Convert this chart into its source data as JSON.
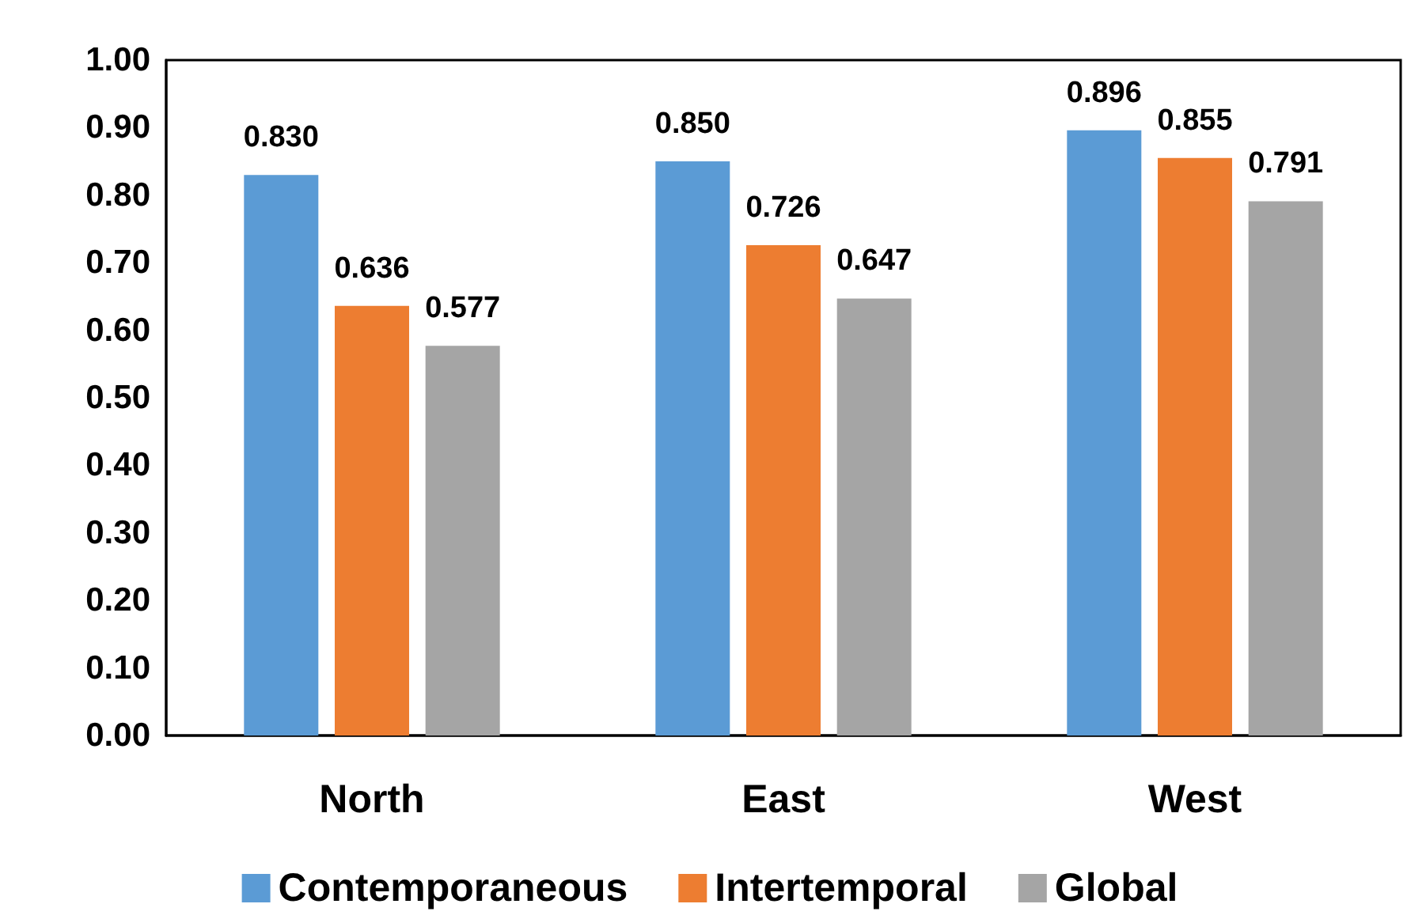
{
  "chart_data": {
    "type": "bar",
    "categories": [
      "North",
      "East",
      "West"
    ],
    "series": [
      {
        "name": "Contemporaneous",
        "color": "#5b9bd5",
        "values": [
          0.83,
          0.85,
          0.896
        ],
        "value_labels": [
          "0.830",
          "0.850",
          "0.896"
        ]
      },
      {
        "name": "Intertemporal",
        "color": "#ed7d31",
        "values": [
          0.636,
          0.726,
          0.855
        ],
        "value_labels": [
          "0.636",
          "0.726",
          "0.855"
        ]
      },
      {
        "name": "Global",
        "color": "#a5a5a5",
        "values": [
          0.577,
          0.647,
          0.791
        ],
        "value_labels": [
          "0.577",
          "0.647",
          "0.791"
        ]
      }
    ],
    "ylim": [
      0,
      1
    ],
    "yticks": [
      {
        "value": 0,
        "label": "0.00"
      },
      {
        "value": 0.1,
        "label": "0.10"
      },
      {
        "value": 0.2,
        "label": "0.20"
      },
      {
        "value": 0.3,
        "label": "0.30"
      },
      {
        "value": 0.4,
        "label": "0.40"
      },
      {
        "value": 0.5,
        "label": "0.50"
      },
      {
        "value": 0.6,
        "label": "0.60"
      },
      {
        "value": 0.7,
        "label": "0.70"
      },
      {
        "value": 0.8,
        "label": "0.80"
      },
      {
        "value": 0.9,
        "label": "0.90"
      },
      {
        "value": 1,
        "label": "1.00"
      }
    ],
    "grid": false,
    "legend": "bottom"
  }
}
